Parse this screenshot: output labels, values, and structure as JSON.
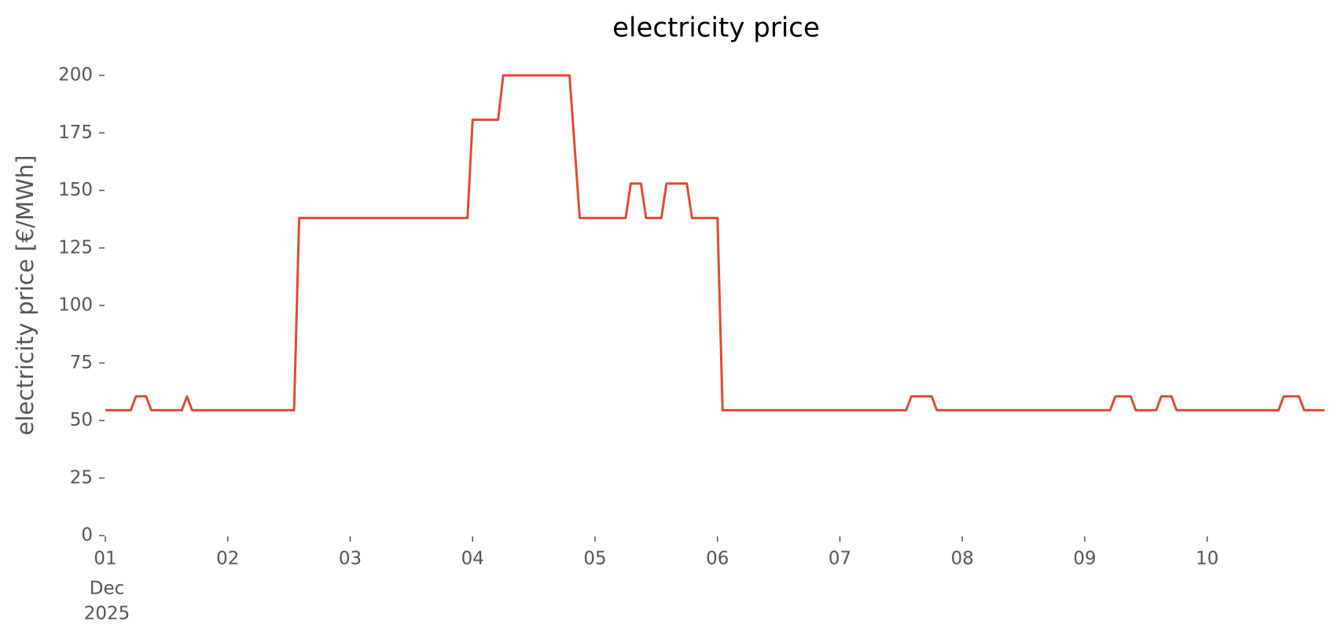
{
  "chart_data": {
    "type": "line",
    "title": "electricity price",
    "y_label": "electricity price [€/MWh]",
    "x_axis_month": "Dec",
    "x_axis_year": "2025",
    "x": [
      1,
      1.2083,
      1.25,
      1.3333,
      1.375,
      1.625,
      1.6667,
      1.7083,
      2.5417,
      2.5833,
      3.9583,
      4,
      4.2083,
      4.25,
      4.7917,
      4.875,
      5.25,
      5.2917,
      5.375,
      5.4167,
      5.5417,
      5.5833,
      5.75,
      5.7917,
      6,
      6.0417,
      7.5417,
      7.5833,
      7.75,
      7.7917,
      9.2083,
      9.25,
      9.375,
      9.4167,
      9.5833,
      9.625,
      9.7083,
      9.75,
      10.5833,
      10.625,
      10.75,
      10.7917,
      10.9583
    ],
    "series": [
      {
        "name": "electricity price",
        "color": "#E24A33",
        "values": [
          54.5,
          54.5,
          60.5,
          60.5,
          54.5,
          54.5,
          60.5,
          54.5,
          54.5,
          138,
          138,
          180.7,
          180.7,
          200,
          200,
          138,
          138,
          153,
          153,
          138,
          138,
          153,
          153,
          138,
          138,
          54.5,
          54.5,
          60.5,
          60.5,
          54.5,
          54.5,
          60.5,
          60.5,
          54.5,
          54.5,
          60.5,
          60.5,
          54.5,
          54.5,
          60.5,
          60.5,
          54.5,
          54.5
        ]
      }
    ],
    "xlim": [
      1,
      10.9583
    ],
    "xticks": [
      {
        "value": 1,
        "label": "01"
      },
      {
        "value": 2,
        "label": "02"
      },
      {
        "value": 3,
        "label": "03"
      },
      {
        "value": 4,
        "label": "04"
      },
      {
        "value": 5,
        "label": "05"
      },
      {
        "value": 6,
        "label": "06"
      },
      {
        "value": 7,
        "label": "07"
      },
      {
        "value": 8,
        "label": "08"
      },
      {
        "value": 9,
        "label": "09"
      },
      {
        "value": 10,
        "label": "10"
      }
    ],
    "ylim": [
      0,
      200
    ],
    "yticks": [
      0,
      25,
      50,
      75,
      100,
      125,
      150,
      175,
      200
    ],
    "grid": false
  }
}
